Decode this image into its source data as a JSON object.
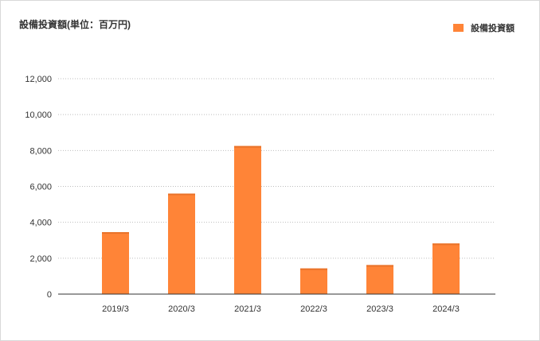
{
  "chart_data": {
    "type": "bar",
    "title": "設備投資額(単位：百万円)",
    "legend": {
      "position": "top-right",
      "entries": [
        "設備投資額"
      ]
    },
    "categories": [
      "2019/3",
      "2020/3",
      "2021/3",
      "2022/3",
      "2023/3",
      "2024/3"
    ],
    "series": [
      {
        "name": "設備投資額",
        "values": [
          3450,
          5600,
          8250,
          1430,
          1620,
          2820
        ],
        "color": "#ff8437"
      }
    ],
    "ylim": [
      0,
      12000
    ],
    "yticks": [
      "0",
      "2,000",
      "4,000",
      "6,000",
      "8,000",
      "10,000",
      "12,000"
    ],
    "ytick_values": [
      0,
      2000,
      4000,
      6000,
      8000,
      10000,
      12000
    ],
    "grid": true,
    "xlabel": "",
    "ylabel": ""
  }
}
